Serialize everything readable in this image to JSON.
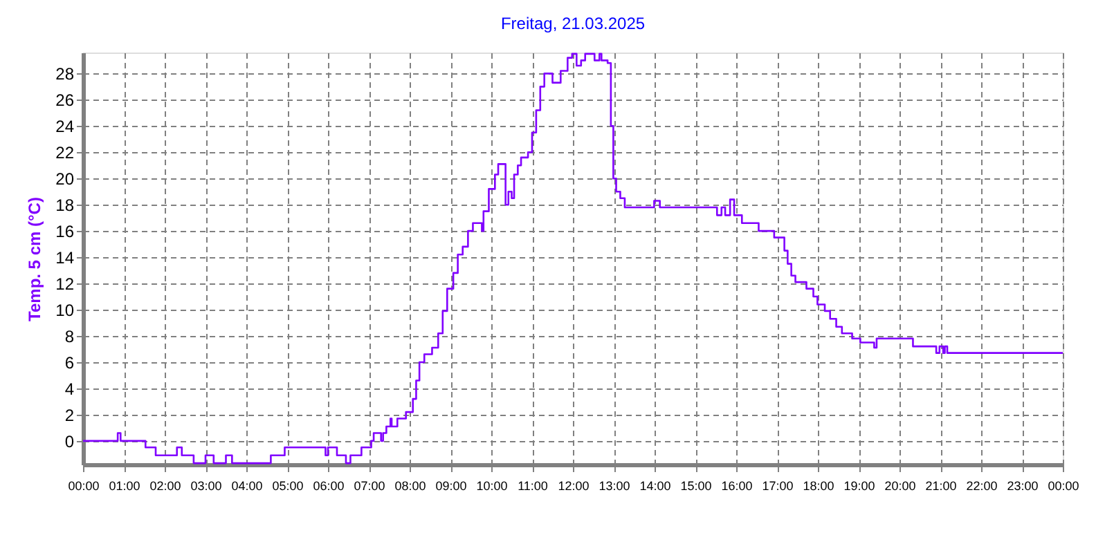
{
  "chart_data": {
    "type": "step",
    "title": "Freitag, 21.03.2025",
    "ylabel": "Temp. 5 cm (°C)",
    "x": [
      0,
      0.85,
      0.92,
      1.53,
      1.78,
      2.3,
      2.42,
      2.71,
      3.0,
      3.2,
      3.5,
      3.65,
      4.6,
      4.94,
      5.94,
      6.0,
      6.22,
      6.44,
      6.55,
      6.82,
      7.06,
      7.12,
      7.3,
      7.35,
      7.43,
      7.53,
      7.56,
      7.7,
      7.91,
      8.08,
      8.16,
      8.24,
      8.36,
      8.55,
      8.7,
      8.81,
      8.92,
      9.07,
      9.18,
      9.3,
      9.43,
      9.55,
      9.77,
      9.81,
      9.94,
      10.09,
      10.17,
      10.35,
      10.42,
      10.5,
      10.56,
      10.65,
      10.73,
      10.9,
      11.0,
      11.1,
      11.2,
      11.3,
      11.5,
      11.7,
      11.87,
      11.98,
      12.09,
      12.2,
      12.3,
      12.53,
      12.65,
      12.7,
      12.85,
      12.93,
      12.99,
      13.06,
      13.16,
      13.27,
      13.99,
      14.13,
      15.53,
      15.64,
      15.73,
      15.85,
      15.95,
      16.14,
      16.55,
      16.93,
      17.18,
      17.26,
      17.35,
      17.45,
      17.72,
      17.89,
      17.99,
      18.17,
      18.3,
      18.45,
      18.59,
      18.84,
      19.04,
      19.38,
      19.44,
      20.33,
      20.9,
      20.98,
      21.07,
      21.11,
      21.17,
      24.0
    ],
    "series": [
      {
        "color": "#8000ff",
        "values": [
          0,
          0.6,
          0,
          -0.5,
          -1.1,
          -0.5,
          -1.1,
          -1.7,
          -1.1,
          -1.7,
          -1.1,
          -1.7,
          -1.1,
          -0.5,
          -1.1,
          -0.5,
          -1.1,
          -1.7,
          -1.1,
          -0.5,
          0,
          0.6,
          0,
          0.6,
          1.1,
          1.7,
          1.1,
          1.7,
          2.2,
          3.2,
          4.6,
          6.0,
          6.6,
          7.1,
          8.2,
          9.9,
          11.6,
          12.8,
          14.2,
          14.8,
          16.0,
          16.6,
          16.0,
          17.5,
          19.2,
          20.3,
          21.1,
          18.0,
          19.0,
          18.5,
          20.3,
          21.0,
          21.6,
          22.0,
          23.5,
          25.2,
          27.0,
          28.0,
          27.3,
          28.2,
          29.2,
          29.5,
          28.6,
          29.0,
          29.5,
          29.0,
          29.5,
          29.0,
          28.8,
          24.0,
          20.0,
          19.0,
          18.5,
          17.8,
          18.3,
          17.8,
          17.2,
          17.8,
          17.2,
          18.4,
          17.2,
          16.6,
          16.0,
          15.5,
          14.5,
          13.5,
          12.6,
          12.1,
          11.6,
          11.0,
          10.4,
          9.9,
          9.3,
          8.7,
          8.2,
          7.8,
          7.5,
          7.1,
          7.8,
          7.2,
          6.7,
          7.2,
          6.7,
          7.2,
          6.7,
          6.7
        ]
      }
    ],
    "xlim": [
      0,
      24
    ],
    "xticks": [
      {
        "value": 0,
        "label": "00:00"
      },
      {
        "value": 1,
        "label": "01:00"
      },
      {
        "value": 2,
        "label": "02:00"
      },
      {
        "value": 3,
        "label": "03:00"
      },
      {
        "value": 4,
        "label": "04:00"
      },
      {
        "value": 5,
        "label": "05:00"
      },
      {
        "value": 6,
        "label": "06:00"
      },
      {
        "value": 7,
        "label": "07:00"
      },
      {
        "value": 8,
        "label": "08:00"
      },
      {
        "value": 9,
        "label": "09:00"
      },
      {
        "value": 10,
        "label": "10:00"
      },
      {
        "value": 11,
        "label": "11:00"
      },
      {
        "value": 12,
        "label": "12:00"
      },
      {
        "value": 13,
        "label": "13:00"
      },
      {
        "value": 14,
        "label": "14:00"
      },
      {
        "value": 15,
        "label": "15:00"
      },
      {
        "value": 16,
        "label": "16:00"
      },
      {
        "value": 17,
        "label": "17:00"
      },
      {
        "value": 18,
        "label": "18:00"
      },
      {
        "value": 19,
        "label": "19:00"
      },
      {
        "value": 20,
        "label": "20:00"
      },
      {
        "value": 21,
        "label": "21:00"
      },
      {
        "value": 22,
        "label": "22:00"
      },
      {
        "value": 23,
        "label": "23:00"
      },
      {
        "value": 24,
        "label": "00:00"
      }
    ],
    "ylim": [
      -1.8,
      29.6
    ],
    "yticks": [
      0,
      2,
      4,
      6,
      8,
      10,
      12,
      14,
      16,
      18,
      20,
      22,
      24,
      26,
      28
    ],
    "grid": true,
    "line_style": "solid",
    "marker": "none"
  }
}
